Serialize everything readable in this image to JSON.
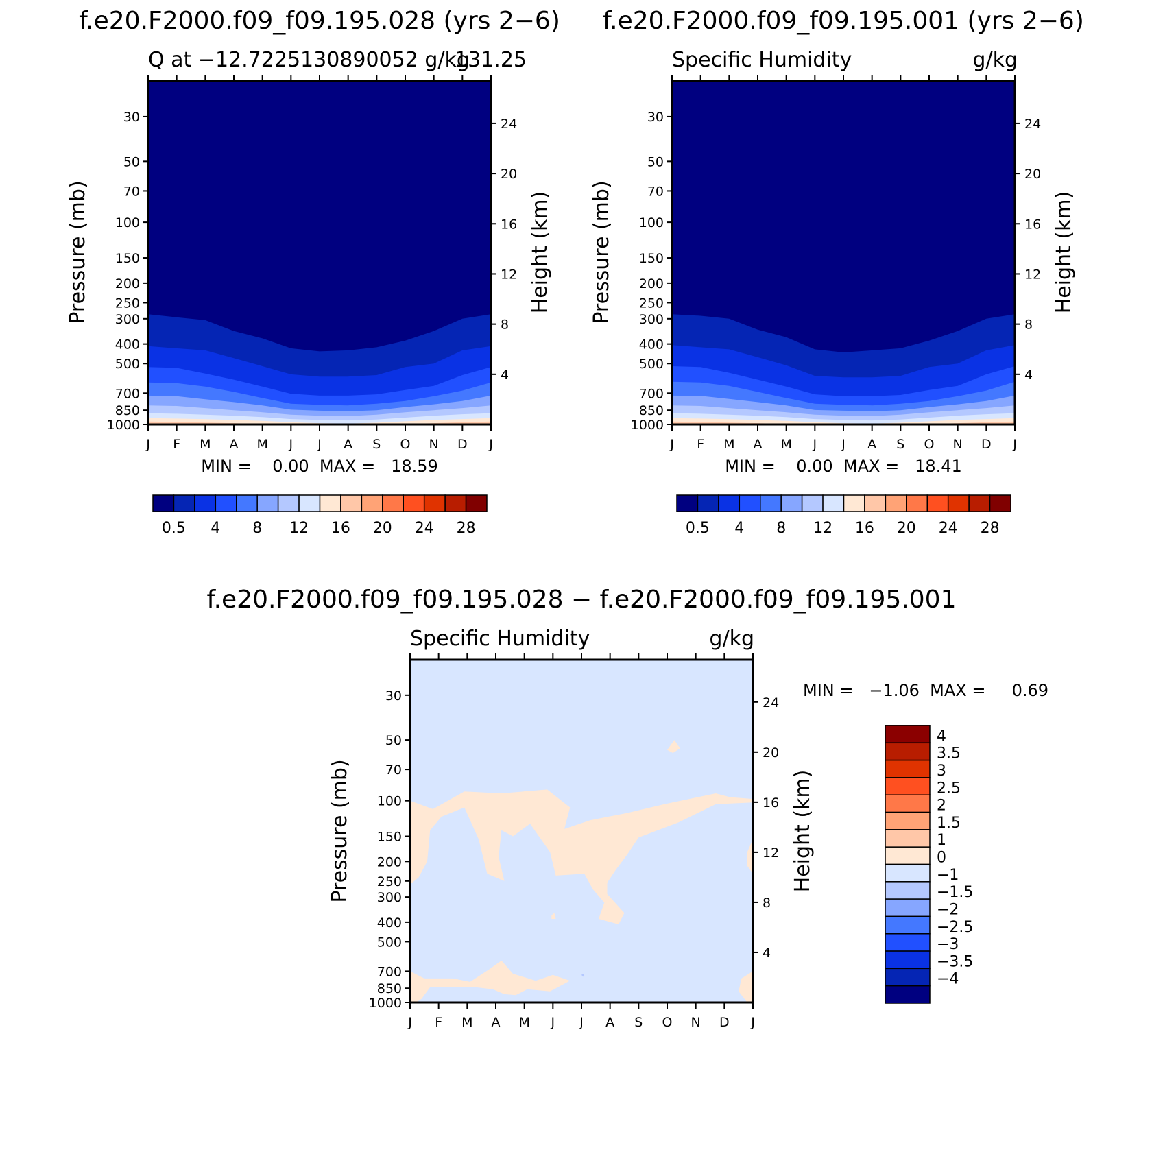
{
  "panels": [
    {
      "id": "top-left",
      "case_title": "f.e20.F2000.f09_f09.195.028 (yrs 2−6)",
      "left_string": "Q at −12.7225130890052 g/kg",
      "right_string": "131.25",
      "min_max": "MIN =    0.00  MAX =   18.59"
    },
    {
      "id": "top-right",
      "case_title": "f.e20.F2000.f09_f09.195.001 (yrs 2−6)",
      "left_string": "Specific Humidity",
      "right_string": "g/kg",
      "min_max": "MIN =    0.00  MAX =   18.41"
    },
    {
      "id": "bottom",
      "case_title": "f.e20.F2000.f09_f09.195.028 − f.e20.F2000.f09_f09.195.001",
      "left_string": "Specific Humidity",
      "right_string": "g/kg",
      "min_max": "MIN =   −1.06  MAX =     0.69"
    }
  ],
  "axes": {
    "ylabel": "Pressure (mb)",
    "y2label": "Height (km)",
    "pressure_ticks": [
      "30",
      "50",
      "70",
      "100",
      "150",
      "200",
      "250",
      "300",
      "400",
      "500",
      "700",
      "850",
      "1000"
    ],
    "height_ticks": [
      "24",
      "20",
      "16",
      "12",
      "8",
      "4"
    ],
    "months": [
      "J",
      "F",
      "M",
      "A",
      "M",
      "J",
      "J",
      "A",
      "S",
      "O",
      "N",
      "D",
      "J"
    ]
  },
  "colorbar_abs": {
    "labels": [
      "0.5",
      "4",
      "8",
      "12",
      "16",
      "20",
      "24",
      "28"
    ],
    "colors": [
      "#000080",
      "#0525b4",
      "#0a32e4",
      "#2150ff",
      "#4478ff",
      "#86a6ff",
      "#b4c8ff",
      "#d8e6ff",
      "#ffe8d4",
      "#ffc7a8",
      "#ffa376",
      "#ff7848",
      "#ff5020",
      "#e03300",
      "#b81d00",
      "#800000"
    ]
  },
  "colorbar_diff": {
    "labels": [
      "4",
      "3.5",
      "3",
      "2.5",
      "2",
      "1.5",
      "1",
      "0",
      "−1",
      "−1.5",
      "−2",
      "−2.5",
      "−3",
      "−3.5",
      "−4"
    ],
    "colors": [
      "#8b0000",
      "#b81d00",
      "#e03300",
      "#ff5020",
      "#ff7848",
      "#ffa376",
      "#ffc7a8",
      "#ffe8d4",
      "#d8e6ff",
      "#b4c8ff",
      "#86a6ff",
      "#4478ff",
      "#2150ff",
      "#0a32e4",
      "#0525b4",
      "#000080"
    ]
  },
  "chart_data": [
    {
      "type": "heatmap",
      "title": "f.e20.F2000.f09_f09.195.028 (yrs 2−6)",
      "xlabel": "",
      "ylabel": "Pressure (mb)",
      "y2label": "Height (km)",
      "ylim": [
        1000,
        20
      ],
      "y_scale": "log",
      "y2_ticks": [
        24,
        20,
        16,
        12,
        8,
        4
      ],
      "colorbar_levels": [
        0.5,
        4,
        8,
        12,
        16,
        20,
        24,
        28
      ],
      "x": [
        "J",
        "F",
        "M",
        "A",
        "M",
        "J",
        "J",
        "A",
        "S",
        "O",
        "N",
        "D",
        "J"
      ],
      "contour_boundaries_mb": {
        "0.5": [
          285,
          295,
          305,
          345,
          375,
          420,
          435,
          430,
          415,
          385,
          345,
          300,
          285
        ],
        "2": [
          410,
          420,
          430,
          470,
          515,
          565,
          580,
          580,
          570,
          520,
          500,
          430,
          410
        ],
        "4": [
          520,
          525,
          560,
          600,
          650,
          705,
          720,
          720,
          710,
          675,
          645,
          570,
          520
        ],
        "6": [
          620,
          625,
          650,
          690,
          740,
          790,
          800,
          805,
          790,
          765,
          725,
          680,
          620
        ],
        "8": [
          720,
          725,
          750,
          775,
          805,
          845,
          855,
          860,
          850,
          820,
          795,
          765,
          720
        ],
        "10": [
          805,
          810,
          830,
          850,
          870,
          895,
          905,
          910,
          895,
          870,
          850,
          830,
          805
        ],
        "12": [
          880,
          885,
          895,
          905,
          920,
          940,
          950,
          955,
          945,
          925,
          905,
          890,
          880
        ],
        "14": [
          930,
          935,
          942,
          950,
          960,
          975,
          985,
          990,
          980,
          965,
          950,
          940,
          930
        ],
        "16": [
          968,
          972,
          978,
          985,
          995,
          1000,
          1000,
          1000,
          1000,
          995,
          985,
          975,
          968
        ]
      },
      "min": 0.0,
      "max": 18.59
    },
    {
      "type": "heatmap",
      "title": "f.e20.F2000.f09_f09.195.001 (yrs 2−6)",
      "xlabel": "",
      "ylabel": "Pressure (mb)",
      "y2label": "Height (km)",
      "ylim": [
        1000,
        20
      ],
      "y_scale": "log",
      "y2_ticks": [
        24,
        20,
        16,
        12,
        8,
        4
      ],
      "colorbar_levels": [
        0.5,
        4,
        8,
        12,
        16,
        20,
        24,
        28
      ],
      "x": [
        "J",
        "F",
        "M",
        "A",
        "M",
        "J",
        "J",
        "A",
        "S",
        "O",
        "N",
        "D",
        "J"
      ],
      "contour_boundaries_mb": {
        "0.5": [
          285,
          290,
          300,
          340,
          370,
          425,
          440,
          430,
          420,
          385,
          345,
          300,
          285
        ],
        "2": [
          405,
          415,
          425,
          465,
          510,
          575,
          585,
          585,
          575,
          520,
          500,
          430,
          405
        ],
        "4": [
          515,
          520,
          555,
          600,
          650,
          710,
          725,
          725,
          715,
          675,
          645,
          565,
          515
        ],
        "6": [
          615,
          620,
          645,
          690,
          740,
          790,
          800,
          805,
          790,
          765,
          725,
          680,
          615
        ],
        "8": [
          720,
          722,
          748,
          775,
          805,
          848,
          855,
          860,
          850,
          820,
          795,
          765,
          720
        ],
        "10": [
          805,
          810,
          830,
          850,
          870,
          895,
          905,
          910,
          895,
          870,
          850,
          830,
          805
        ],
        "12": [
          880,
          885,
          895,
          905,
          920,
          940,
          950,
          955,
          945,
          925,
          905,
          890,
          880
        ],
        "14": [
          930,
          935,
          942,
          950,
          960,
          975,
          985,
          990,
          980,
          965,
          950,
          940,
          930
        ],
        "16": [
          968,
          972,
          978,
          985,
          995,
          1000,
          1000,
          1000,
          1000,
          995,
          985,
          975,
          968
        ]
      },
      "min": 0.0,
      "max": 18.41
    },
    {
      "type": "heatmap",
      "title": "f.e20.F2000.f09_f09.195.028 − f.e20.F2000.f09_f09.195.001",
      "xlabel": "",
      "ylabel": "Pressure (mb)",
      "y2label": "Height (km)",
      "ylim": [
        1000,
        20
      ],
      "y_scale": "log",
      "y2_ticks": [
        24,
        20,
        16,
        12,
        8,
        4
      ],
      "colorbar_levels": [
        -4,
        -3.5,
        -3,
        -2.5,
        -2,
        -1.5,
        -1,
        0,
        1,
        1.5,
        2,
        2.5,
        3,
        3.5,
        4
      ],
      "x": [
        "J",
        "F",
        "M",
        "A",
        "M",
        "J",
        "J",
        "A",
        "S",
        "O",
        "N",
        "D",
        "J"
      ],
      "background_range": [
        -1,
        0
      ],
      "positive_regions_in_range": [
        0,
        1
      ],
      "positive_regions": [
        [
          [
            0.0,
            100
          ],
          [
            0.8,
            110
          ],
          [
            1.9,
            90
          ],
          [
            3.2,
            92
          ],
          [
            4.8,
            88
          ],
          [
            5.6,
            108
          ],
          [
            5.4,
            138
          ],
          [
            6.3,
            125
          ],
          [
            7.6,
            115
          ],
          [
            8.9,
            104
          ],
          [
            10.7,
            92
          ],
          [
            11.2,
            96
          ],
          [
            12.0,
            98
          ],
          [
            12.0,
            102
          ],
          [
            10.7,
            104
          ],
          [
            9.4,
            128
          ],
          [
            8.0,
            152
          ],
          [
            7.6,
            185
          ],
          [
            7.2,
            220
          ],
          [
            6.9,
            255
          ],
          [
            6.9,
            290
          ],
          [
            7.5,
            360
          ],
          [
            7.3,
            410
          ],
          [
            6.6,
            385
          ],
          [
            6.8,
            320
          ],
          [
            6.4,
            275
          ],
          [
            6.1,
            230
          ],
          [
            5.1,
            235
          ],
          [
            4.9,
            180
          ],
          [
            4.2,
            130
          ],
          [
            3.6,
            150
          ],
          [
            3.2,
            140
          ],
          [
            3.1,
            190
          ],
          [
            3.3,
            250
          ],
          [
            2.7,
            230
          ],
          [
            2.4,
            155
          ],
          [
            1.9,
            108
          ],
          [
            1.1,
            120
          ],
          [
            0.7,
            140
          ],
          [
            0.6,
            200
          ],
          [
            0.3,
            240
          ],
          [
            0.0,
            260
          ]
        ],
        [
          [
            11.8,
            180
          ],
          [
            12.0,
            155
          ],
          [
            12.0,
            230
          ],
          [
            11.8,
            210
          ]
        ],
        [
          [
            9.0,
            56
          ],
          [
            9.25,
            50
          ],
          [
            9.45,
            55
          ],
          [
            9.2,
            58
          ]
        ],
        [
          [
            4.95,
            370
          ],
          [
            5.05,
            360
          ],
          [
            5.1,
            385
          ],
          [
            4.95,
            385
          ]
        ],
        [
          [
            0.0,
            700
          ],
          [
            0.5,
            760
          ],
          [
            1.5,
            760
          ],
          [
            2.1,
            790
          ],
          [
            2.8,
            680
          ],
          [
            3.2,
            620
          ],
          [
            3.6,
            720
          ],
          [
            4.4,
            780
          ],
          [
            5.0,
            730
          ],
          [
            5.6,
            780
          ],
          [
            4.9,
            880
          ],
          [
            4.1,
            860
          ],
          [
            3.7,
            920
          ],
          [
            3.3,
            910
          ],
          [
            2.9,
            860
          ],
          [
            2.3,
            840
          ],
          [
            0.7,
            840
          ],
          [
            0.4,
            960
          ],
          [
            0.2,
            1000
          ],
          [
            0.0,
            1000
          ]
        ],
        [
          [
            12.0,
            700
          ],
          [
            11.6,
            760
          ],
          [
            11.5,
            880
          ],
          [
            11.8,
            1000
          ],
          [
            12.0,
            1000
          ]
        ]
      ],
      "negative_small_regions": [
        [
          [
            6.0,
            730
          ],
          [
            6.05,
            720
          ],
          [
            6.1,
            735
          ],
          [
            6.05,
            745
          ]
        ]
      ],
      "min": -1.06,
      "max": 0.69
    }
  ]
}
